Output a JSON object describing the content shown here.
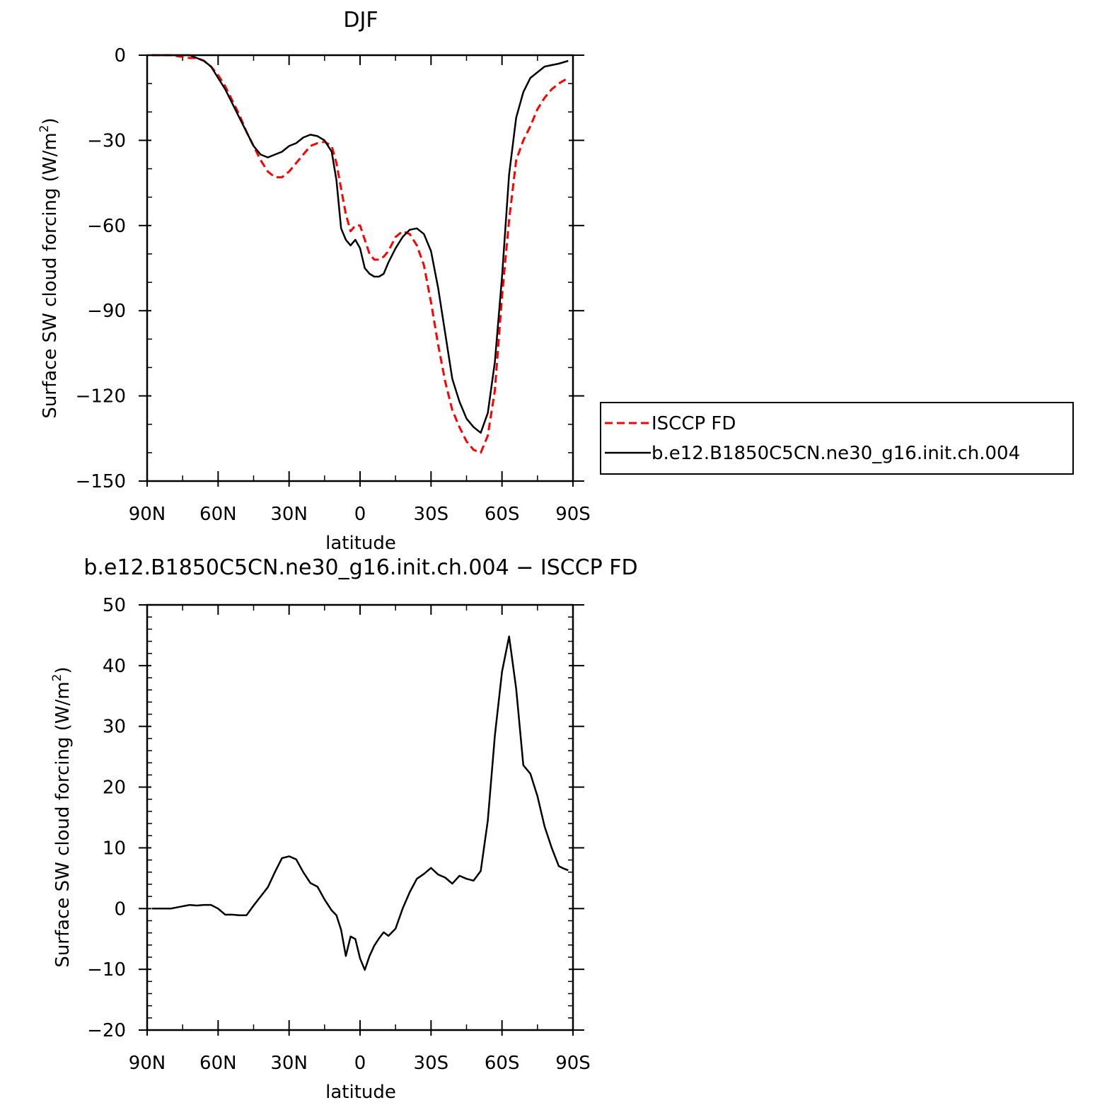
{
  "chart_data": [
    {
      "type": "line",
      "title": "DJF",
      "xlabel": "latitude",
      "ylabel": "Surface SW cloud forcing (W/m",
      "ylabel_sup": "2",
      "ylabel_end": ")",
      "xlim": [
        90,
        -90
      ],
      "ylim": [
        -150,
        0
      ],
      "xticks": [
        90,
        60,
        30,
        0,
        -30,
        -60,
        -90
      ],
      "xtick_labels": [
        "90N",
        "60N",
        "30N",
        "0",
        "30S",
        "60S",
        "90S"
      ],
      "yticks": [
        0,
        -30,
        -60,
        -90,
        -120,
        -150
      ],
      "ytick_labels": [
        "0",
        "−30",
        "−60",
        "−90",
        "−120",
        "−150"
      ],
      "grid": false,
      "legend_position": "right",
      "series": [
        {
          "name": "ISCCP FD",
          "color": "#ff0000",
          "dash": "dashed",
          "x": [
            88,
            80,
            72,
            69,
            66,
            63,
            60,
            57,
            54,
            51,
            48,
            45,
            42,
            39,
            36,
            33,
            30,
            27,
            24,
            21,
            18,
            15,
            12,
            10,
            8,
            6,
            4,
            2,
            0,
            -2,
            -4,
            -6,
            -8,
            -10,
            -12,
            -15,
            -18,
            -21,
            -24,
            -27,
            -30,
            -33,
            -36,
            -39,
            -42,
            -45,
            -48,
            -51,
            -54,
            -57,
            -60,
            -63,
            -66,
            -69,
            -72,
            -75,
            -78,
            -81,
            -84,
            -86,
            -88
          ],
          "y": [
            0,
            0,
            -1,
            -1,
            -2,
            -4,
            -7,
            -11,
            -16,
            -21,
            -27,
            -32,
            -37,
            -41,
            -43,
            -43,
            -41,
            -38,
            -35,
            -32,
            -31,
            -30.5,
            -32,
            -38,
            -47,
            -56,
            -62,
            -60,
            -60,
            -65,
            -70,
            -72,
            -72,
            -71,
            -69,
            -64,
            -62,
            -63,
            -67,
            -74,
            -87,
            -102,
            -115,
            -125,
            -131,
            -136,
            -139,
            -140,
            -134,
            -118,
            -85,
            -58,
            -37,
            -30,
            -25,
            -19,
            -15,
            -12,
            -10,
            -9,
            -8
          ]
        },
        {
          "name": "b.e12.B1850C5CN.ne30_g16.init.ch.004",
          "color": "#000000",
          "dash": "solid",
          "x": [
            88,
            80,
            72,
            69,
            66,
            63,
            60,
            57,
            54,
            51,
            48,
            45,
            42,
            39,
            36,
            33,
            30,
            27,
            24,
            21,
            18,
            15,
            12,
            10,
            8,
            6,
            4,
            2,
            0,
            -2,
            -4,
            -6,
            -8,
            -10,
            -12,
            -15,
            -18,
            -21,
            -24,
            -27,
            -30,
            -33,
            -36,
            -39,
            -42,
            -45,
            -48,
            -51,
            -54,
            -57,
            -60,
            -63,
            -66,
            -69,
            -72,
            -75,
            -78,
            -81,
            -84,
            -86,
            -88
          ],
          "y": [
            0,
            0,
            0,
            -1,
            -2,
            -4,
            -8,
            -12,
            -17,
            -22,
            -27,
            -32,
            -35,
            -36,
            -35,
            -34,
            -32,
            -31,
            -29,
            -28,
            -28.5,
            -30,
            -34,
            -44,
            -61,
            -65,
            -67,
            -65,
            -68,
            -75,
            -77,
            -78,
            -78,
            -77,
            -73,
            -68,
            -64,
            -61.5,
            -61,
            -63,
            -69,
            -82,
            -98,
            -114,
            -122,
            -128,
            -131,
            -133,
            -126,
            -108,
            -78,
            -42,
            -22,
            -13,
            -8,
            -6,
            -4,
            -3.5,
            -3,
            -2.5,
            -2
          ]
        }
      ]
    },
    {
      "type": "line",
      "title": "b.e12.B1850C5CN.ne30_g16.init.ch.004 − ISCCP FD",
      "xlabel": "latitude",
      "ylabel": "Surface SW cloud forcing (W/m",
      "ylabel_sup": "2",
      "ylabel_end": ")",
      "xlim": [
        90,
        -90
      ],
      "ylim": [
        -20,
        50
      ],
      "xticks": [
        90,
        60,
        30,
        0,
        -30,
        -60,
        -90
      ],
      "xtick_labels": [
        "90N",
        "60N",
        "30N",
        "0",
        "30S",
        "60S",
        "90S"
      ],
      "yticks": [
        50,
        40,
        30,
        20,
        10,
        0,
        -10,
        -20
      ],
      "ytick_labels": [
        "50",
        "40",
        "30",
        "20",
        "10",
        "0",
        "−10",
        "−20"
      ],
      "grid": false,
      "series": [
        {
          "color": "#000000",
          "dash": "solid",
          "x": [
            88,
            80,
            76,
            72,
            69,
            66,
            63,
            60,
            57,
            54,
            51,
            48,
            45,
            42,
            39,
            36,
            33,
            30,
            27,
            24,
            21,
            18,
            15,
            12,
            10,
            8,
            6,
            4,
            2,
            0,
            -2,
            -4,
            -6,
            -8,
            -10,
            -12,
            -15,
            -18,
            -21,
            -24,
            -27,
            -30,
            -33,
            -36,
            -39,
            -42,
            -45,
            -48,
            -51,
            -54,
            -57,
            -60,
            -63,
            -66,
            -69,
            -72,
            -75,
            -78,
            -81,
            -84,
            -86,
            -88
          ],
          "y": [
            0,
            0,
            0.3,
            0.6,
            0.5,
            0.6,
            0.6,
            0,
            -1,
            -1,
            -1.1,
            -1.1,
            0.5,
            2,
            3.5,
            6,
            8.3,
            8.6,
            8.1,
            6,
            4.2,
            3.6,
            1.5,
            -0.3,
            -1.1,
            -3.5,
            -7.8,
            -4.6,
            -5,
            -8.2,
            -10.1,
            -7.8,
            -6.1,
            -4.9,
            -3.9,
            -4.5,
            -3.3,
            0,
            2.7,
            4.9,
            5.7,
            6.7,
            5.6,
            5.1,
            4.1,
            5.4,
            4.9,
            4.6,
            6.2,
            14.5,
            28.5,
            39,
            44.8,
            36.2,
            23.6,
            22.2,
            18.5,
            13.5,
            10,
            7,
            6.6,
            6.3
          ]
        }
      ]
    }
  ]
}
